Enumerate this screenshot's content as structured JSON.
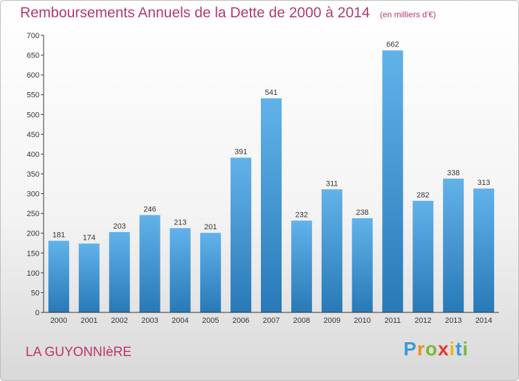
{
  "chart_data": {
    "type": "bar",
    "title": "Remboursements Annuels de la Dette de 2000 à 2014",
    "subtitle": "(en milliers d'€)",
    "xlabel": "",
    "ylabel": "",
    "ylim": [
      0,
      700
    ],
    "yticks": [
      0,
      50,
      100,
      150,
      200,
      250,
      300,
      350,
      400,
      450,
      500,
      550,
      600,
      650,
      700
    ],
    "grid": false,
    "categories": [
      "2000",
      "2001",
      "2002",
      "2003",
      "2004",
      "2005",
      "2006",
      "2007",
      "2008",
      "2009",
      "2010",
      "2011",
      "2012",
      "2013",
      "2014"
    ],
    "values": [
      181,
      174,
      203,
      246,
      213,
      201,
      391,
      541,
      232,
      311,
      238,
      662,
      282,
      338,
      313
    ],
    "bar_color_top": "#62b2ea",
    "bar_color_bottom": "#2879b6"
  },
  "commune": "LA GUYONNIèRE",
  "brand": {
    "letters": [
      "P",
      "r",
      "o",
      "x",
      "i",
      "t",
      "i"
    ],
    "colors": [
      "#3a9bd5",
      "#f28c1e",
      "#7cb342",
      "#e53935",
      "#f2b51e",
      "#3a9bd5",
      "#7cb342"
    ]
  },
  "colors": {
    "title": "#b03a73",
    "commune": "#c0306b",
    "axis": "#333333"
  }
}
